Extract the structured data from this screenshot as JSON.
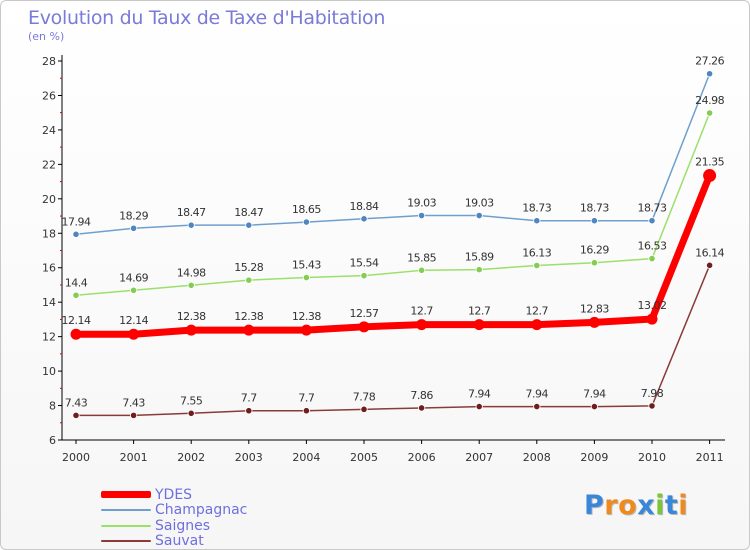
{
  "chart_data": {
    "type": "line",
    "title": "Evolution du Taux de Taxe d'Habitation",
    "subtitle": "(en %)",
    "xlabel": "",
    "ylabel": "(en %)",
    "ylim": [
      6,
      28
    ],
    "yticks": [
      6,
      8,
      10,
      12,
      14,
      16,
      18,
      20,
      22,
      24,
      26,
      28
    ],
    "categories": [
      "2000",
      "2001",
      "2002",
      "2003",
      "2004",
      "2005",
      "2006",
      "2007",
      "2008",
      "2009",
      "2010",
      "2011"
    ],
    "series": [
      {
        "name": "Champagnac",
        "color": "#6f9fcf",
        "point_color": "#4f86c0",
        "values": [
          17.94,
          18.29,
          18.47,
          18.47,
          18.65,
          18.84,
          19.03,
          19.03,
          18.73,
          18.73,
          18.73,
          27.26
        ],
        "labels": [
          "17.94",
          "18.29",
          "18.47",
          "18.47",
          "18.65",
          "18.84",
          "19.03",
          "19.03",
          "18.73",
          "18.73",
          "18.73",
          "27.26"
        ]
      },
      {
        "name": "Saignes",
        "color": "#9be06a",
        "point_color": "#84cc52",
        "values": [
          14.4,
          14.69,
          14.98,
          15.28,
          15.43,
          15.54,
          15.85,
          15.89,
          16.13,
          16.29,
          16.53,
          24.98
        ],
        "labels": [
          "14.4",
          "14.69",
          "14.98",
          "15.28",
          "15.43",
          "15.54",
          "15.85",
          "15.89",
          "16.13",
          "16.29",
          "16.53",
          "24.98"
        ]
      },
      {
        "name": "YDES",
        "color": "#ff0000",
        "point_color": "#ff0000",
        "values": [
          12.14,
          12.14,
          12.38,
          12.38,
          12.38,
          12.57,
          12.7,
          12.7,
          12.7,
          12.83,
          13.02,
          21.35
        ],
        "labels": [
          "12.14",
          "12.14",
          "12.38",
          "12.38",
          "12.38",
          "12.57",
          "12.7",
          "12.7",
          "12.7",
          "12.83",
          "13.02",
          "21.35"
        ]
      },
      {
        "name": "Sauvat",
        "color": "#8b3a3a",
        "point_color": "#6e1e1e",
        "values": [
          7.43,
          7.43,
          7.55,
          7.7,
          7.7,
          7.78,
          7.86,
          7.94,
          7.94,
          7.94,
          7.98,
          16.14
        ],
        "labels": [
          "7.43",
          "7.43",
          "7.55",
          "7.7",
          "7.7",
          "7.78",
          "7.86",
          "7.94",
          "7.94",
          "7.94",
          "7.98",
          "16.14"
        ]
      }
    ],
    "legend_position": "bottom-left",
    "grid": false
  },
  "legend": [
    {
      "name": "YDES",
      "color": "#ff0000"
    },
    {
      "name": "Champagnac",
      "color": "#6f9fcf"
    },
    {
      "name": "Saignes",
      "color": "#9be06a"
    },
    {
      "name": "Sauvat",
      "color": "#8b3a3a"
    }
  ],
  "logo": {
    "text": "Proxiti",
    "letters": [
      "P",
      "r",
      "o",
      "x",
      "i",
      "t",
      "i"
    ],
    "colors": [
      "#3a86d8",
      "#f08a1c",
      "#f08a1c",
      "#3a86d8",
      "#7cc43c",
      "#3a86d8",
      "#f08a1c"
    ]
  }
}
